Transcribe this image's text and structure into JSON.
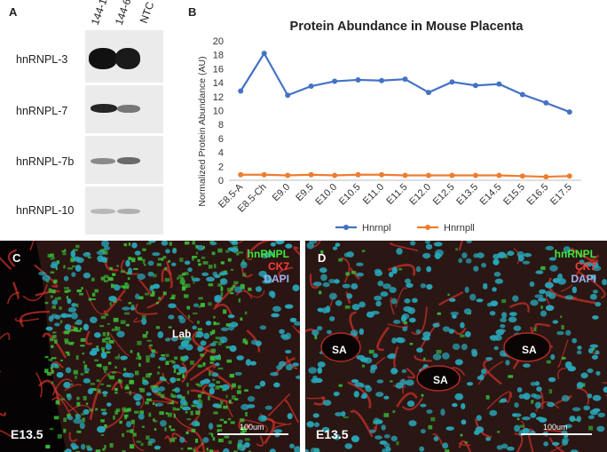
{
  "panels": {
    "a": {
      "letter": "A",
      "lanes": [
        "144-1",
        "144-6",
        "NTC"
      ],
      "genes": [
        "hnRNPL-3",
        "hnRNPL-7",
        "hnRNPL-7b",
        "hnRNPL-10"
      ]
    },
    "b": {
      "letter": "B"
    },
    "c": {
      "letter": "C",
      "stage": "E13.5",
      "region": "Lab",
      "scale": "100um",
      "legend": [
        "hnRNPL",
        "CK7",
        "DAPI"
      ]
    },
    "d": {
      "letter": "D",
      "stage": "E13.5",
      "region": "SA",
      "scale": "100um",
      "legend": [
        "hnRNPL",
        "CK7",
        "DAPI"
      ]
    }
  },
  "chart_data": {
    "type": "line",
    "title": "Protein Abundance in Mouse Placenta",
    "ylabel": "Normalized Protein Abundance (AU)",
    "xlabel": "",
    "ylim": [
      0,
      20
    ],
    "yticks": [
      0,
      2,
      4,
      6,
      8,
      10,
      12,
      14,
      16,
      18,
      20
    ],
    "categories": [
      "E8.5-A",
      "E8.5-Ch",
      "E9.0",
      "E9.5",
      "E10.0",
      "E10.5",
      "E11.0",
      "E11.5",
      "E12.0",
      "E12.5",
      "E13.5",
      "E14.5",
      "E15.5",
      "E16.5",
      "E17.5"
    ],
    "series": [
      {
        "name": "Hnrnpl",
        "color": "#4472c4",
        "values": [
          12.8,
          18.2,
          12.2,
          13.5,
          14.2,
          14.4,
          14.3,
          14.5,
          12.6,
          14.1,
          13.6,
          13.8,
          12.3,
          11.1,
          9.8
        ]
      },
      {
        "name": "Hnrnpll",
        "color": "#ed7d31",
        "values": [
          0.8,
          0.8,
          0.7,
          0.8,
          0.7,
          0.8,
          0.8,
          0.7,
          0.7,
          0.7,
          0.7,
          0.7,
          0.6,
          0.5,
          0.6
        ]
      }
    ],
    "grid": false,
    "legend": "bottom"
  }
}
